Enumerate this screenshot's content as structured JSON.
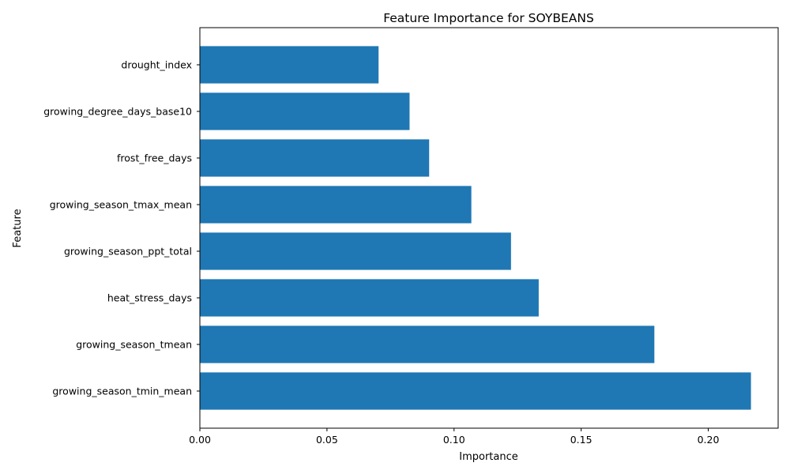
{
  "chart_data": {
    "type": "bar",
    "orientation": "horizontal",
    "title": "Feature Importance for SOYBEANS",
    "xlabel": "Importance",
    "ylabel": "Feature",
    "xlim": [
      0,
      0.2275
    ],
    "xticks": [
      "0.00",
      "0.05",
      "0.10",
      "0.15",
      "0.20"
    ],
    "xtick_values": [
      0,
      0.05,
      0.1,
      0.15,
      0.2
    ],
    "categories": [
      "drought_index",
      "growing_degree_days_base10",
      "frost_free_days",
      "growing_season_tmax_mean",
      "growing_season_ppt_total",
      "heat_stress_days",
      "growing_season_tmean",
      "growing_season_tmin_mean"
    ],
    "values": [
      0.0703,
      0.0825,
      0.0902,
      0.1068,
      0.1224,
      0.1333,
      0.1788,
      0.2168
    ],
    "bar_color": "#1f77b4",
    "grid": false,
    "legend": "none"
  }
}
